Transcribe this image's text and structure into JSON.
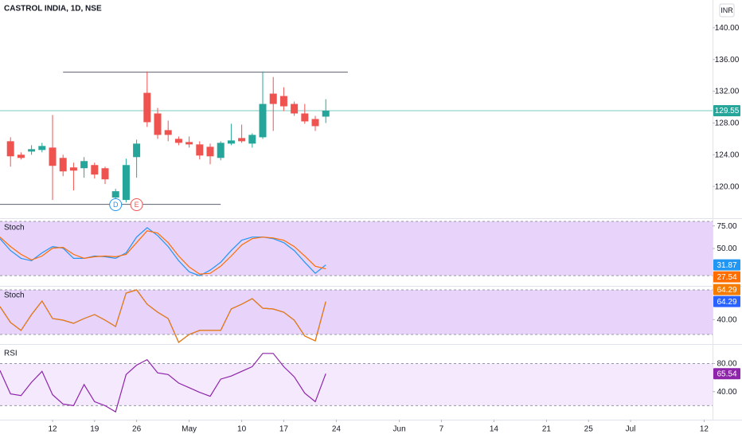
{
  "chart_data": [
    {
      "type": "candlestick",
      "title": "CASTROL INDIA, 1D, NSE",
      "currency": "INR",
      "x": [
        -4,
        -3,
        -2,
        -1,
        0,
        1,
        2,
        3,
        4,
        5,
        6,
        7,
        8,
        9,
        10,
        11,
        12,
        13,
        14,
        15,
        16,
        17,
        18,
        19,
        20,
        21,
        22,
        23,
        24,
        25,
        26
      ],
      "open": [
        125.7,
        124.0,
        124.4,
        124.6,
        124.9,
        123.6,
        122.4,
        122.3,
        122.7,
        122.3,
        118.6,
        118.3,
        123.7,
        131.8,
        129.2,
        127.1,
        126.0,
        125.6,
        125.3,
        125.0,
        123.6,
        125.4,
        126.1,
        125.4,
        126.2,
        131.7,
        131.4,
        130.4,
        129.2,
        128.5,
        128.8
      ],
      "high": [
        126.2,
        124.3,
        125.2,
        125.5,
        129.0,
        124.0,
        123.0,
        123.7,
        123.0,
        122.5,
        119.7,
        123.5,
        125.9,
        134.5,
        129.9,
        128.3,
        126.3,
        126.3,
        125.7,
        125.4,
        125.7,
        127.9,
        127.8,
        126.7,
        134.5,
        133.8,
        132.5,
        130.7,
        130.4,
        128.9,
        131.0
      ],
      "low": [
        122.5,
        123.4,
        124.0,
        124.3,
        118.3,
        121.3,
        119.5,
        121.1,
        121.0,
        120.3,
        118.3,
        118.0,
        121.1,
        127.5,
        126.0,
        125.7,
        125.2,
        124.9,
        123.4,
        122.8,
        123.3,
        125.2,
        125.5,
        124.9,
        126.0,
        127.0,
        129.5,
        128.9,
        127.9,
        127.0,
        128.0
      ],
      "close": [
        123.8,
        123.6,
        124.7,
        125.1,
        122.6,
        121.9,
        122.0,
        123.2,
        121.5,
        120.9,
        119.4,
        122.7,
        125.4,
        128.1,
        126.5,
        126.5,
        125.5,
        125.3,
        123.9,
        123.8,
        125.5,
        125.8,
        125.7,
        126.5,
        130.4,
        130.4,
        130.1,
        129.2,
        128.2,
        127.6,
        129.55
      ],
      "up_color": "#26a69a",
      "down_color": "#ef5350",
      "last_color": "#26a69a",
      "xlim": [
        -5,
        62.8
      ],
      "ylim": [
        116,
        143.5
      ],
      "yticks": [
        {
          "value": 120,
          "label": "120.00"
        },
        {
          "value": 124,
          "label": "124.00"
        },
        {
          "value": 128,
          "label": "128.00"
        },
        {
          "value": 132,
          "label": "132.00"
        },
        {
          "value": 136,
          "label": "136.00"
        },
        {
          "value": 140,
          "label": "140.00"
        }
      ],
      "hlines": [
        {
          "value": 134.4,
          "x": [
            1,
            28.1
          ]
        },
        {
          "value": 117.75,
          "x": [
            -5,
            16
          ]
        }
      ],
      "markers": [
        {
          "label": "D",
          "x": 6,
          "color": "#2196f3"
        },
        {
          "label": "E",
          "x": 8,
          "color": "#ef5350"
        }
      ]
    },
    {
      "type": "line",
      "title": "Stoch",
      "x": [
        -5,
        -4,
        -3,
        -2,
        -1,
        0,
        1,
        2,
        3,
        4,
        5,
        6,
        7,
        8,
        9,
        10,
        11,
        12,
        13,
        14,
        15,
        16,
        17,
        18,
        19,
        20,
        21,
        22,
        23,
        24,
        25,
        26
      ],
      "series": [
        {
          "color": "#2196f3",
          "values": [
            60.9,
            47.8,
            39.1,
            36.5,
            45.2,
            52.2,
            50.4,
            39.1,
            39.1,
            41.7,
            40.9,
            39.1,
            45.2,
            62.6,
            73,
            64.3,
            52.2,
            36.5,
            24.3,
            20,
            26.1,
            34.8,
            47.8,
            59.1,
            62.6,
            62.6,
            60.9,
            56.5,
            47.8,
            34.8,
            22.6,
            31.87
          ]
        },
        {
          "color": "#ff6d00",
          "values": [
            62.6,
            52.2,
            43.5,
            37.4,
            41.7,
            50.4,
            51.3,
            43.5,
            39.1,
            40.9,
            41.7,
            40.9,
            43.5,
            56.5,
            69.6,
            67,
            56.5,
            41.7,
            29.6,
            21.7,
            22.6,
            30.4,
            41.7,
            53.9,
            60.9,
            62.6,
            61.7,
            59.1,
            52.2,
            41.7,
            30.4,
            27.54
          ]
        }
      ],
      "xlim": [
        -5,
        62.8
      ],
      "ylim": [
        8.7,
        82.6
      ],
      "yticks": [
        {
          "value": 50,
          "label": "50.00"
        },
        {
          "value": 75,
          "label": "75.00"
        }
      ],
      "bands": [
        20,
        80
      ],
      "band_color": "#e8d3fb"
    },
    {
      "type": "line",
      "title": "Stoch",
      "x": [
        -5,
        -4,
        -3,
        -2,
        -1,
        0,
        1,
        2,
        3,
        4,
        5,
        6,
        7,
        8,
        9,
        10,
        11,
        12,
        13,
        14,
        15,
        16,
        17,
        18,
        19,
        20,
        21,
        22,
        23,
        24,
        25,
        26
      ],
      "series": [
        {
          "color": "#2962ff",
          "values": [
            57.5,
            36.1,
            25.4,
            46.8,
            65,
            41.4,
            39.3,
            35,
            41.4,
            46.8,
            39.3,
            30.7,
            75.7,
            80,
            60.7,
            50,
            41.4,
            9.3,
            20,
            25.4,
            25.4,
            25.4,
            54.3,
            60.7,
            68.2,
            55.4,
            54.3,
            50,
            39.3,
            17.9,
            11.4,
            64.29
          ]
        },
        {
          "color": "#f57c00",
          "values": [
            57.5,
            36.1,
            25.4,
            46.8,
            65,
            41.4,
            39.3,
            35,
            41.4,
            46.8,
            39.3,
            30.7,
            75.7,
            80,
            60.7,
            50,
            41.4,
            9.3,
            20,
            25.4,
            25.4,
            25.4,
            54.3,
            60.7,
            68.2,
            55.4,
            54.3,
            50,
            39.3,
            17.9,
            11.4,
            64.29
          ]
        }
      ],
      "xlim": [
        -5,
        62.8
      ],
      "ylim": [
        7.1,
        84.3
      ],
      "yticks": [
        {
          "value": 40,
          "label": "40.00"
        }
      ],
      "bands": [
        20,
        80
      ],
      "band_color": "#e8d3fb"
    },
    {
      "type": "line",
      "title": "RSI",
      "x": [
        -5,
        -4,
        -3,
        -2,
        -1,
        0,
        1,
        2,
        3,
        4,
        5,
        6,
        7,
        8,
        9,
        10,
        11,
        12,
        13,
        14,
        15,
        16,
        17,
        18,
        19,
        20,
        21,
        22,
        23,
        24,
        25,
        26
      ],
      "series": [
        {
          "color": "#8e24aa",
          "values": [
            70,
            36.7,
            34.4,
            53.3,
            68.9,
            35.6,
            22.2,
            20,
            50,
            25.6,
            20,
            11.1,
            64.4,
            77.8,
            85.6,
            66.7,
            64.4,
            52.2,
            45.6,
            38.9,
            33.3,
            57.8,
            62.2,
            68.9,
            75.6,
            94.4,
            94.4,
            75.6,
            61.1,
            37.8,
            25.6,
            65.54
          ]
        }
      ],
      "xlim": [
        -5,
        62.8
      ],
      "ylim": [
        1.1,
        106.7
      ],
      "yticks": [
        {
          "value": 40,
          "label": "40.00"
        },
        {
          "value": 80,
          "label": "80.00"
        }
      ],
      "bands": [
        20,
        80
      ],
      "band_color": "#f4e9fd",
      "xticks": [
        {
          "value": 0,
          "label": "12"
        },
        {
          "value": 4,
          "label": "19"
        },
        {
          "value": 8,
          "label": "26"
        },
        {
          "value": 13,
          "label": "May"
        },
        {
          "value": 18,
          "label": "10"
        },
        {
          "value": 22,
          "label": "17"
        },
        {
          "value": 27,
          "label": "24"
        },
        {
          "value": 33,
          "label": "Jun"
        },
        {
          "value": 37,
          "label": "7"
        },
        {
          "value": 42,
          "label": "14"
        },
        {
          "value": 47,
          "label": "21"
        },
        {
          "value": 51,
          "label": "25"
        },
        {
          "value": 55,
          "label": "Jul"
        },
        {
          "value": 62,
          "label": "12"
        }
      ]
    }
  ]
}
